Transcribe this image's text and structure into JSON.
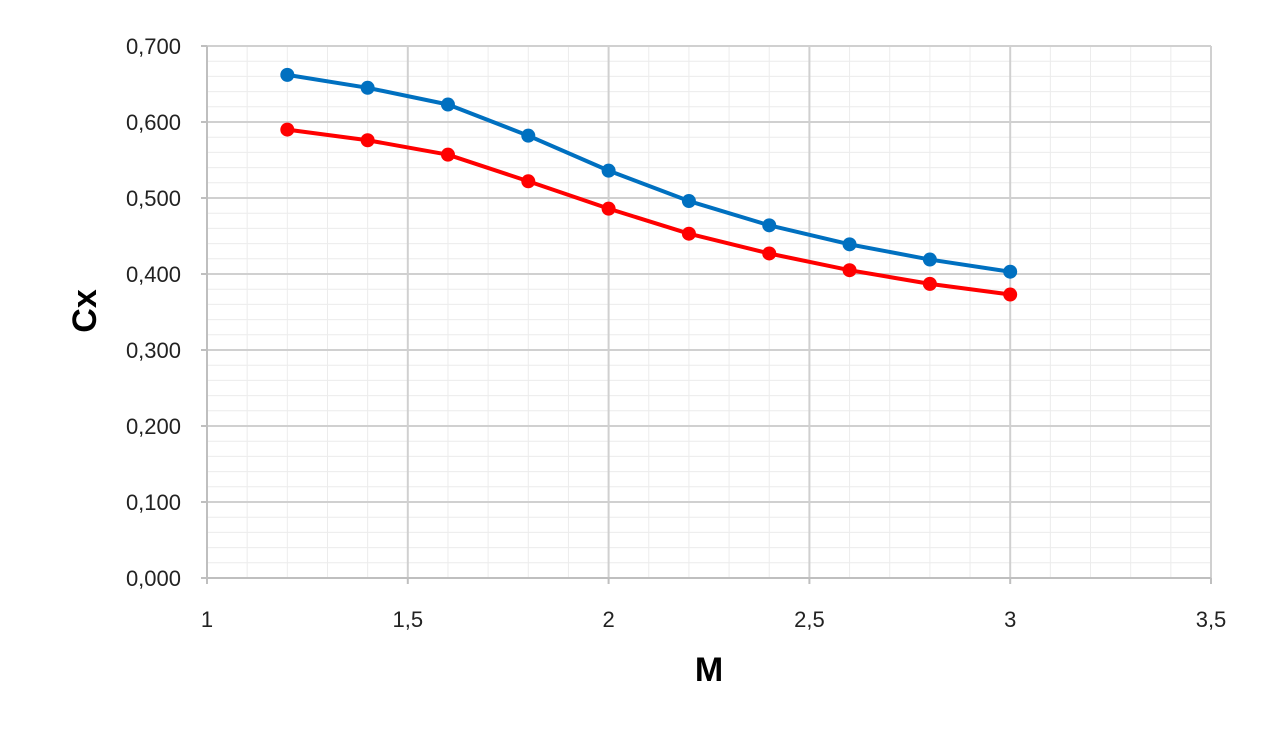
{
  "chart_data": {
    "type": "line",
    "title": "",
    "xlabel": "M",
    "ylabel": "Cx",
    "xlim": [
      1,
      3.5
    ],
    "ylim": [
      0,
      0.7
    ],
    "x_ticks": [
      "1",
      "1,5",
      "2",
      "2,5",
      "3",
      "3,5"
    ],
    "x_tick_values": [
      1,
      1.5,
      2,
      2.5,
      3,
      3.5
    ],
    "y_ticks": [
      "0,000",
      "0,100",
      "0,200",
      "0,300",
      "0,400",
      "0,500",
      "0,600",
      "0,700"
    ],
    "y_tick_values": [
      0,
      0.1,
      0.2,
      0.3,
      0.4,
      0.5,
      0.6,
      0.7
    ],
    "grid": true,
    "minor_grid": true,
    "legend": "none",
    "x": [
      1.2,
      1.4,
      1.6,
      1.8,
      2.0,
      2.2,
      2.4,
      2.6,
      2.8,
      3.0
    ],
    "series": [
      {
        "color": "#0070C0",
        "values": [
          0.662,
          0.645,
          0.623,
          0.582,
          0.536,
          0.496,
          0.464,
          0.439,
          0.419,
          0.403
        ]
      },
      {
        "color": "#FF0000",
        "values": [
          0.59,
          0.576,
          0.557,
          0.522,
          0.486,
          0.453,
          0.427,
          0.405,
          0.387,
          0.373
        ]
      }
    ]
  }
}
